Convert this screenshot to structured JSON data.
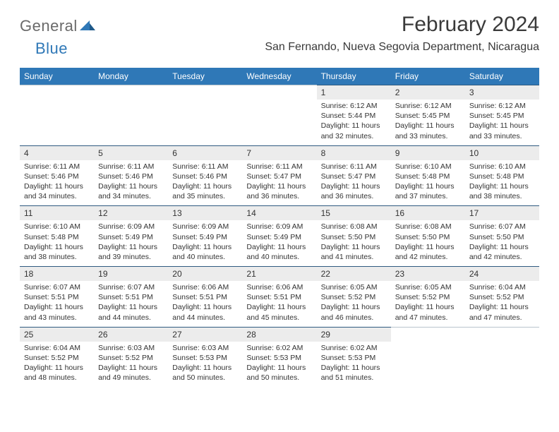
{
  "logo": {
    "text_gray": "General",
    "text_blue": "Blue"
  },
  "title": "February 2024",
  "location": "San Fernando, Nueva Segovia Department, Nicaragua",
  "colors": {
    "header_bg": "#2f78b7",
    "header_text": "#ffffff",
    "daynum_bg": "#ececec",
    "rule": "#2f5a80",
    "text": "#333333",
    "logo_gray": "#6a6a6a",
    "logo_blue": "#2f78b7"
  },
  "weekdays": [
    "Sunday",
    "Monday",
    "Tuesday",
    "Wednesday",
    "Thursday",
    "Friday",
    "Saturday"
  ],
  "weeks": [
    [
      null,
      null,
      null,
      null,
      {
        "n": "1",
        "sr": "6:12 AM",
        "ss": "5:44 PM",
        "dl": "11 hours and 32 minutes."
      },
      {
        "n": "2",
        "sr": "6:12 AM",
        "ss": "5:45 PM",
        "dl": "11 hours and 33 minutes."
      },
      {
        "n": "3",
        "sr": "6:12 AM",
        "ss": "5:45 PM",
        "dl": "11 hours and 33 minutes."
      }
    ],
    [
      {
        "n": "4",
        "sr": "6:11 AM",
        "ss": "5:46 PM",
        "dl": "11 hours and 34 minutes."
      },
      {
        "n": "5",
        "sr": "6:11 AM",
        "ss": "5:46 PM",
        "dl": "11 hours and 34 minutes."
      },
      {
        "n": "6",
        "sr": "6:11 AM",
        "ss": "5:46 PM",
        "dl": "11 hours and 35 minutes."
      },
      {
        "n": "7",
        "sr": "6:11 AM",
        "ss": "5:47 PM",
        "dl": "11 hours and 36 minutes."
      },
      {
        "n": "8",
        "sr": "6:11 AM",
        "ss": "5:47 PM",
        "dl": "11 hours and 36 minutes."
      },
      {
        "n": "9",
        "sr": "6:10 AM",
        "ss": "5:48 PM",
        "dl": "11 hours and 37 minutes."
      },
      {
        "n": "10",
        "sr": "6:10 AM",
        "ss": "5:48 PM",
        "dl": "11 hours and 38 minutes."
      }
    ],
    [
      {
        "n": "11",
        "sr": "6:10 AM",
        "ss": "5:48 PM",
        "dl": "11 hours and 38 minutes."
      },
      {
        "n": "12",
        "sr": "6:09 AM",
        "ss": "5:49 PM",
        "dl": "11 hours and 39 minutes."
      },
      {
        "n": "13",
        "sr": "6:09 AM",
        "ss": "5:49 PM",
        "dl": "11 hours and 40 minutes."
      },
      {
        "n": "14",
        "sr": "6:09 AM",
        "ss": "5:49 PM",
        "dl": "11 hours and 40 minutes."
      },
      {
        "n": "15",
        "sr": "6:08 AM",
        "ss": "5:50 PM",
        "dl": "11 hours and 41 minutes."
      },
      {
        "n": "16",
        "sr": "6:08 AM",
        "ss": "5:50 PM",
        "dl": "11 hours and 42 minutes."
      },
      {
        "n": "17",
        "sr": "6:07 AM",
        "ss": "5:50 PM",
        "dl": "11 hours and 42 minutes."
      }
    ],
    [
      {
        "n": "18",
        "sr": "6:07 AM",
        "ss": "5:51 PM",
        "dl": "11 hours and 43 minutes."
      },
      {
        "n": "19",
        "sr": "6:07 AM",
        "ss": "5:51 PM",
        "dl": "11 hours and 44 minutes."
      },
      {
        "n": "20",
        "sr": "6:06 AM",
        "ss": "5:51 PM",
        "dl": "11 hours and 44 minutes."
      },
      {
        "n": "21",
        "sr": "6:06 AM",
        "ss": "5:51 PM",
        "dl": "11 hours and 45 minutes."
      },
      {
        "n": "22",
        "sr": "6:05 AM",
        "ss": "5:52 PM",
        "dl": "11 hours and 46 minutes."
      },
      {
        "n": "23",
        "sr": "6:05 AM",
        "ss": "5:52 PM",
        "dl": "11 hours and 47 minutes."
      },
      {
        "n": "24",
        "sr": "6:04 AM",
        "ss": "5:52 PM",
        "dl": "11 hours and 47 minutes."
      }
    ],
    [
      {
        "n": "25",
        "sr": "6:04 AM",
        "ss": "5:52 PM",
        "dl": "11 hours and 48 minutes."
      },
      {
        "n": "26",
        "sr": "6:03 AM",
        "ss": "5:52 PM",
        "dl": "11 hours and 49 minutes."
      },
      {
        "n": "27",
        "sr": "6:03 AM",
        "ss": "5:53 PM",
        "dl": "11 hours and 50 minutes."
      },
      {
        "n": "28",
        "sr": "6:02 AM",
        "ss": "5:53 PM",
        "dl": "11 hours and 50 minutes."
      },
      {
        "n": "29",
        "sr": "6:02 AM",
        "ss": "5:53 PM",
        "dl": "11 hours and 51 minutes."
      },
      null,
      null
    ]
  ],
  "labels": {
    "sunrise": "Sunrise:",
    "sunset": "Sunset:",
    "daylight": "Daylight:"
  }
}
